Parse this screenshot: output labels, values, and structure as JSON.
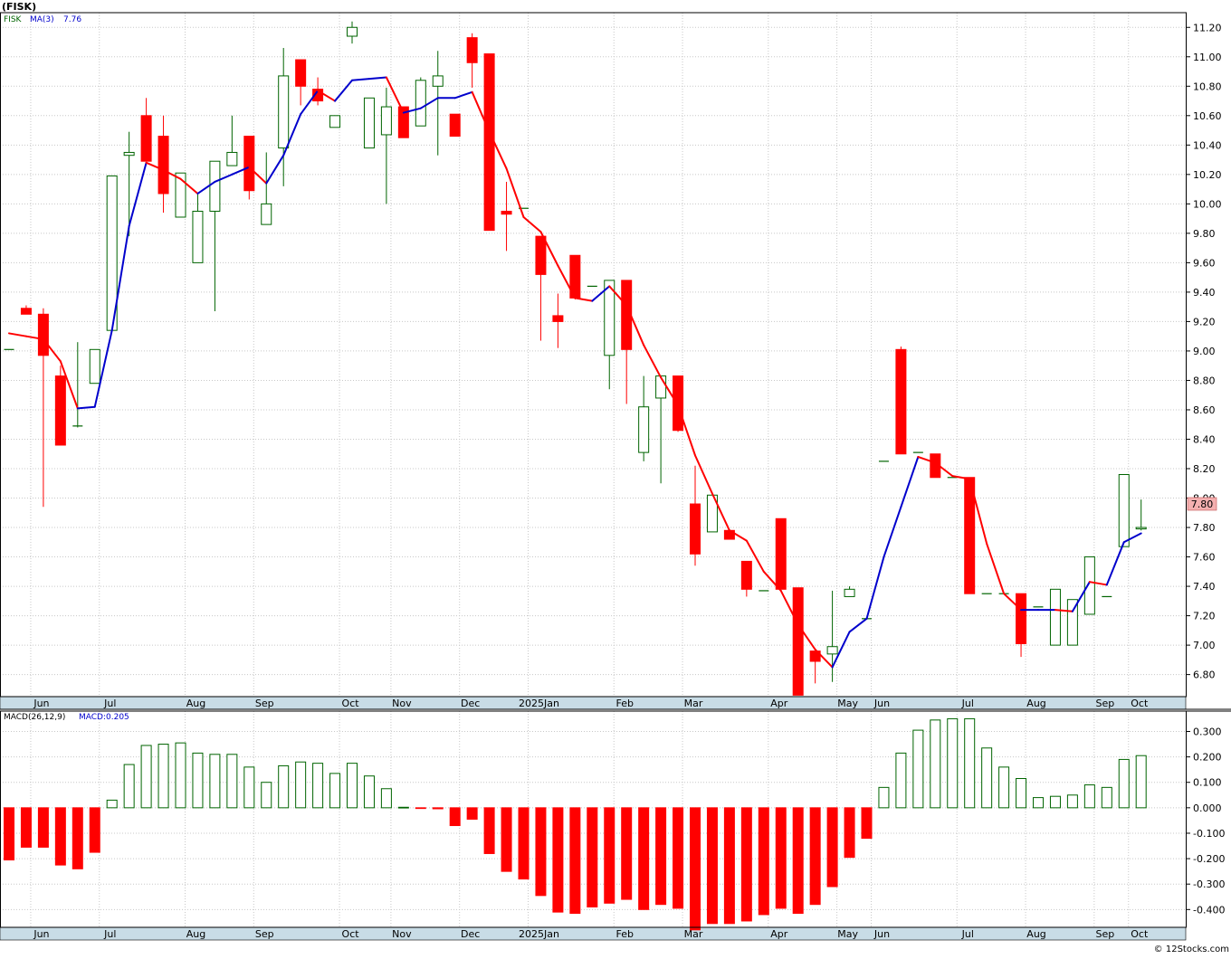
{
  "header": {
    "symbol_title": "(FISK)",
    "legend_symbol": "FISK",
    "ma_label": "MA(3)",
    "ma_value": "7.76",
    "last_price": "7.80"
  },
  "macd_header": {
    "label": "MACD(26,12,9)",
    "value_label": "MACD:0.205"
  },
  "footer": {
    "copyright": "© 12Stocks.com"
  },
  "colors": {
    "up": "#006400",
    "down": "#ff0000",
    "ma_up": "#0000cc",
    "ma_down": "#ff0000",
    "grid": "#c8c8c8",
    "axis_band": "#c8dce6",
    "price_tag": "#f4b0b0"
  },
  "chart_data": [
    {
      "type": "candlestick",
      "title": "(FISK)",
      "ylim": [
        6.65,
        11.3
      ],
      "y_ticks": [
        "6.80",
        "7.00",
        "7.20",
        "7.40",
        "7.60",
        "7.80",
        "8.00",
        "8.20",
        "8.40",
        "8.60",
        "8.80",
        "9.00",
        "9.20",
        "9.40",
        "9.60",
        "9.80",
        "10.00",
        "10.20",
        "10.40",
        "10.60",
        "10.80",
        "11.00",
        "11.20"
      ],
      "x_labels": [
        "Jun",
        "Jul",
        "Aug",
        "Sep",
        "Oct",
        "Nov",
        "Dec",
        "2025Jan",
        "Feb",
        "Mar",
        "Apr",
        "May",
        "Jun",
        "Jul",
        "Aug",
        "Sep",
        "Oct"
      ],
      "x_label_week": [
        1,
        5,
        10,
        14,
        19,
        22,
        26,
        30,
        35,
        39,
        44,
        48,
        50,
        55,
        59,
        63,
        65
      ],
      "series": [
        {
          "name": "FISK",
          "candles": [
            {
              "o": 9.01,
              "h": 9.01,
              "l": 9.01,
              "c": 9.01
            },
            {
              "o": 9.29,
              "h": 9.31,
              "l": 9.25,
              "c": 9.25
            },
            {
              "o": 9.25,
              "h": 9.29,
              "l": 7.94,
              "c": 8.97
            },
            {
              "o": 8.83,
              "h": 8.9,
              "l": 8.36,
              "c": 8.36
            },
            {
              "o": 8.49,
              "h": 9.06,
              "l": 8.48,
              "c": 8.49
            },
            {
              "o": 8.78,
              "h": 9.01,
              "l": 8.78,
              "c": 9.01
            },
            {
              "o": 9.14,
              "h": 10.19,
              "l": 9.14,
              "c": 10.19
            },
            {
              "o": 10.33,
              "h": 10.49,
              "l": 9.78,
              "c": 10.35
            },
            {
              "o": 10.6,
              "h": 10.72,
              "l": 10.29,
              "c": 10.29
            },
            {
              "o": 10.46,
              "h": 10.6,
              "l": 9.94,
              "c": 10.07
            },
            {
              "o": 9.91,
              "h": 10.21,
              "l": 9.91,
              "c": 10.21
            },
            {
              "o": 9.6,
              "h": 10.07,
              "l": 9.6,
              "c": 9.95
            },
            {
              "o": 9.95,
              "h": 10.29,
              "l": 9.27,
              "c": 10.29
            },
            {
              "o": 10.26,
              "h": 10.6,
              "l": 10.26,
              "c": 10.35
            },
            {
              "o": 10.46,
              "h": 10.46,
              "l": 10.03,
              "c": 10.09
            },
            {
              "o": 9.86,
              "h": 10.35,
              "l": 9.86,
              "c": 10.0
            },
            {
              "o": 10.38,
              "h": 11.06,
              "l": 10.12,
              "c": 10.87
            },
            {
              "o": 10.98,
              "h": 10.98,
              "l": 10.67,
              "c": 10.8
            },
            {
              "o": 10.78,
              "h": 10.86,
              "l": 10.67,
              "c": 10.7
            },
            {
              "o": 10.52,
              "h": 10.6,
              "l": 10.52,
              "c": 10.6
            },
            {
              "o": 11.14,
              "h": 11.24,
              "l": 11.09,
              "c": 11.2
            },
            {
              "o": 10.38,
              "h": 10.72,
              "l": 10.38,
              "c": 10.72
            },
            {
              "o": 10.47,
              "h": 10.79,
              "l": 10.0,
              "c": 10.66
            },
            {
              "o": 10.66,
              "h": 10.66,
              "l": 10.45,
              "c": 10.45
            },
            {
              "o": 10.53,
              "h": 10.86,
              "l": 10.53,
              "c": 10.84
            },
            {
              "o": 10.8,
              "h": 11.04,
              "l": 10.33,
              "c": 10.87
            },
            {
              "o": 10.61,
              "h": 10.61,
              "l": 10.46,
              "c": 10.46
            },
            {
              "o": 11.13,
              "h": 11.16,
              "l": 10.79,
              "c": 10.96
            },
            {
              "o": 11.02,
              "h": 11.02,
              "l": 9.82,
              "c": 9.82
            },
            {
              "o": 9.95,
              "h": 10.15,
              "l": 9.68,
              "c": 9.93
            },
            {
              "o": 9.97,
              "h": 9.97,
              "l": 9.97,
              "c": 9.97
            },
            {
              "o": 9.78,
              "h": 9.78,
              "l": 9.07,
              "c": 9.52
            },
            {
              "o": 9.24,
              "h": 9.39,
              "l": 9.02,
              "c": 9.2
            },
            {
              "o": 9.65,
              "h": 9.65,
              "l": 9.35,
              "c": 9.36
            },
            {
              "o": 9.44,
              "h": 9.44,
              "l": 9.44,
              "c": 9.44
            },
            {
              "o": 8.97,
              "h": 9.48,
              "l": 8.74,
              "c": 9.48
            },
            {
              "o": 9.48,
              "h": 9.48,
              "l": 8.64,
              "c": 9.01
            },
            {
              "o": 8.31,
              "h": 8.83,
              "l": 8.25,
              "c": 8.62
            },
            {
              "o": 8.68,
              "h": 8.83,
              "l": 8.1,
              "c": 8.83
            },
            {
              "o": 8.83,
              "h": 8.83,
              "l": 8.45,
              "c": 8.46
            },
            {
              "o": 7.96,
              "h": 8.22,
              "l": 7.54,
              "c": 7.62
            },
            {
              "o": 7.77,
              "h": 8.02,
              "l": 7.77,
              "c": 8.02
            },
            {
              "o": 7.78,
              "h": 7.78,
              "l": 7.72,
              "c": 7.72
            },
            {
              "o": 7.57,
              "h": 7.57,
              "l": 7.33,
              "c": 7.38
            },
            {
              "o": 7.37,
              "h": 7.37,
              "l": 7.37,
              "c": 7.37
            },
            {
              "o": 7.86,
              "h": 7.86,
              "l": 7.38,
              "c": 7.38
            },
            {
              "o": 7.39,
              "h": 7.39,
              "l": 6.66,
              "c": 6.66
            },
            {
              "o": 6.96,
              "h": 6.96,
              "l": 6.74,
              "c": 6.89
            },
            {
              "o": 6.94,
              "h": 7.37,
              "l": 6.75,
              "c": 6.99
            },
            {
              "o": 7.33,
              "h": 7.4,
              "l": 7.33,
              "c": 7.38
            },
            {
              "o": 7.18,
              "h": 7.18,
              "l": 7.18,
              "c": 7.18
            },
            {
              "o": 8.25,
              "h": 8.25,
              "l": 8.25,
              "c": 8.25
            },
            {
              "o": 9.01,
              "h": 9.03,
              "l": 8.3,
              "c": 8.3
            },
            {
              "o": 8.31,
              "h": 8.31,
              "l": 8.31,
              "c": 8.31
            },
            {
              "o": 8.3,
              "h": 8.3,
              "l": 8.14,
              "c": 8.14
            },
            {
              "o": 8.14,
              "h": 8.14,
              "l": 8.14,
              "c": 8.14
            },
            {
              "o": 8.14,
              "h": 8.14,
              "l": 7.35,
              "c": 7.35
            },
            {
              "o": 7.35,
              "h": 7.35,
              "l": 7.35,
              "c": 7.35
            },
            {
              "o": 7.35,
              "h": 7.35,
              "l": 7.35,
              "c": 7.35
            },
            {
              "o": 7.35,
              "h": 7.35,
              "l": 6.92,
              "c": 7.01
            },
            {
              "o": 7.26,
              "h": 7.26,
              "l": 7.26,
              "c": 7.26
            },
            {
              "o": 7.0,
              "h": 7.38,
              "l": 7.0,
              "c": 7.38
            },
            {
              "o": 7.0,
              "h": 7.31,
              "l": 7.0,
              "c": 7.31
            },
            {
              "o": 7.21,
              "h": 7.6,
              "l": 7.21,
              "c": 7.6
            },
            {
              "o": 7.33,
              "h": 7.33,
              "l": 7.33,
              "c": 7.33
            },
            {
              "o": 7.67,
              "h": 8.16,
              "l": 7.67,
              "c": 8.16
            },
            {
              "o": 7.79,
              "h": 7.99,
              "l": 7.78,
              "c": 7.8
            }
          ]
        },
        {
          "name": "MA(3)",
          "values": [
            9.12,
            9.1,
            9.08,
            8.93,
            8.61,
            8.62,
            9.14,
            9.85,
            10.28,
            10.23,
            10.17,
            10.07,
            10.15,
            10.2,
            10.25,
            10.14,
            10.33,
            10.61,
            10.77,
            10.7,
            10.84,
            10.85,
            10.86,
            10.62,
            10.65,
            10.72,
            10.72,
            10.76,
            10.49,
            10.24,
            9.91,
            9.81,
            9.58,
            9.36,
            9.34,
            9.44,
            9.31,
            9.04,
            8.82,
            8.63,
            8.29,
            8.03,
            7.78,
            7.71,
            7.5,
            7.37,
            7.14,
            6.97,
            6.85,
            7.09,
            7.18,
            7.6,
            7.94,
            8.28,
            8.24,
            8.15,
            8.13,
            7.69,
            7.35,
            7.24,
            7.24,
            7.24,
            7.23,
            7.43,
            7.41,
            7.7,
            7.76
          ]
        }
      ]
    },
    {
      "type": "bar",
      "title": "MACD(26,12,9)",
      "ylim": [
        -0.47,
        0.38
      ],
      "y_ticks": [
        "-0.400",
        "-0.300",
        "-0.200",
        "-0.100",
        "0.000",
        "0.100",
        "0.200",
        "0.300"
      ],
      "series": [
        {
          "name": "MACD",
          "values": [
            -0.205,
            -0.155,
            -0.155,
            -0.225,
            -0.24,
            -0.175,
            0.03,
            0.17,
            0.245,
            0.25,
            0.255,
            0.215,
            0.21,
            0.21,
            0.16,
            0.1,
            0.165,
            0.18,
            0.175,
            0.135,
            0.175,
            0.125,
            0.075,
            0.002,
            -0.002,
            -0.004,
            -0.07,
            -0.045,
            -0.18,
            -0.25,
            -0.28,
            -0.345,
            -0.41,
            -0.415,
            -0.39,
            -0.375,
            -0.36,
            -0.4,
            -0.38,
            -0.395,
            -0.48,
            -0.455,
            -0.455,
            -0.445,
            -0.42,
            -0.395,
            -0.415,
            -0.38,
            -0.31,
            -0.195,
            -0.12,
            0.08,
            0.215,
            0.305,
            0.345,
            0.35,
            0.35,
            0.235,
            0.16,
            0.115,
            0.04,
            0.045,
            0.05,
            0.09,
            0.08,
            0.19,
            0.205
          ]
        }
      ]
    }
  ]
}
